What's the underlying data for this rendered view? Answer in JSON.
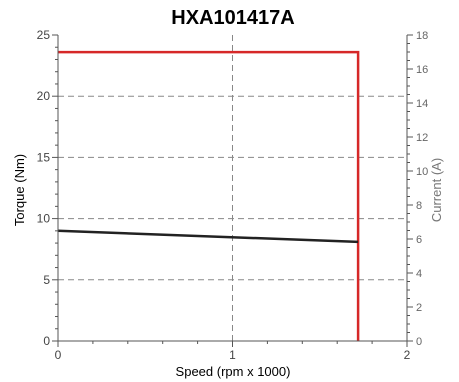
{
  "chart_data": {
    "type": "line",
    "title": "HXA101417A",
    "xlabel": "Speed (rpm x 1000)",
    "ylabel": "Torque (Nm)",
    "y2label": "Current (A)",
    "xlim": [
      0,
      2
    ],
    "ylim": [
      0,
      25
    ],
    "y2lim": [
      0,
      18
    ],
    "xticks": [
      0,
      1,
      2
    ],
    "yticks": [
      0,
      5,
      10,
      15,
      20,
      25
    ],
    "y2ticks": [
      0,
      2,
      4,
      6,
      8,
      10,
      12,
      14,
      16,
      18
    ],
    "grid": true,
    "series": [
      {
        "axis": "left",
        "color": "#d62828",
        "x": [
          0,
          1.72,
          1.72
        ],
        "y": [
          23.6,
          23.6,
          0
        ]
      },
      {
        "axis": "left",
        "color": "#222222",
        "x": [
          0,
          1.72
        ],
        "y": [
          9.0,
          8.1
        ]
      }
    ]
  }
}
